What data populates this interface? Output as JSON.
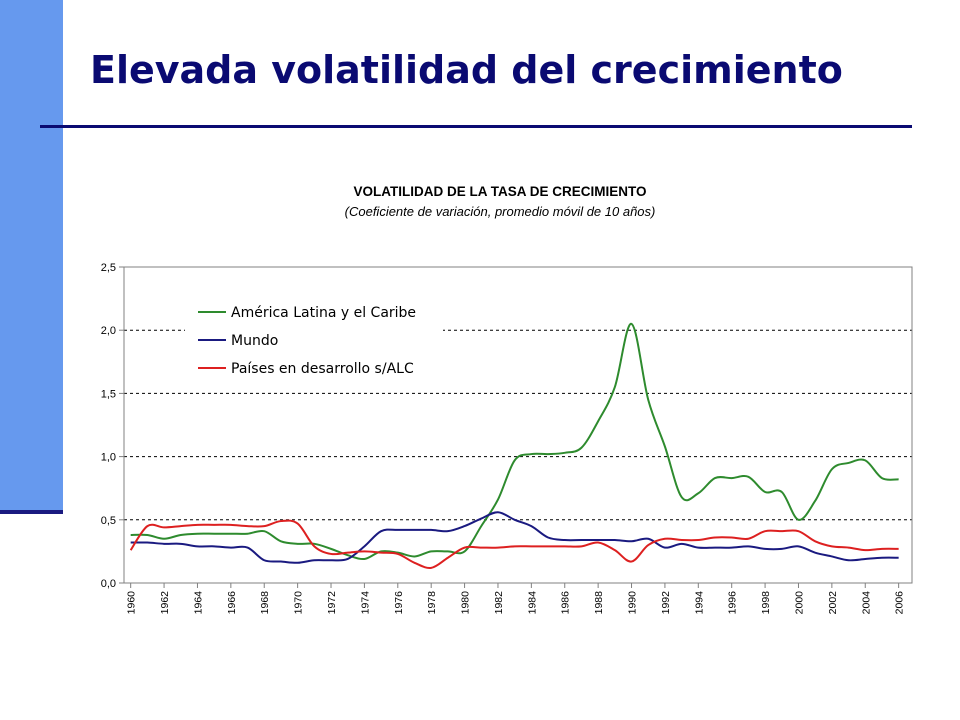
{
  "slide": {
    "title": "Elevada volatilidad del crecimiento"
  },
  "chart_data": {
    "type": "line",
    "title": "VOLATILIDAD DE LA TASA DE CRECIMIENTO",
    "subtitle": "(Coeficiente de variación, promedio móvil de 10 años)",
    "xlabel": "",
    "ylabel": "",
    "ylim": [
      0,
      2.5
    ],
    "yticks": [
      "0,0",
      "0,5",
      "1,0",
      "1,5",
      "2,0",
      "2,5"
    ],
    "xticks": [
      "1960",
      "1962",
      "1964",
      "1966",
      "1968",
      "1970",
      "1972",
      "1974",
      "1976",
      "1978",
      "1980",
      "1982",
      "1984",
      "1986",
      "1988",
      "1990",
      "1992",
      "1994",
      "1996",
      "1998",
      "2000",
      "2002",
      "2004",
      "2006"
    ],
    "grid": "horizontal dashed",
    "legend_position": "top-left",
    "x": [
      1960,
      1961,
      1962,
      1963,
      1964,
      1965,
      1966,
      1967,
      1968,
      1969,
      1970,
      1971,
      1972,
      1973,
      1974,
      1975,
      1976,
      1977,
      1978,
      1979,
      1980,
      1981,
      1982,
      1983,
      1984,
      1985,
      1986,
      1987,
      1988,
      1989,
      1990,
      1991,
      1992,
      1993,
      1994,
      1995,
      1996,
      1997,
      1998,
      1999,
      2000,
      2001,
      2002,
      2003,
      2004,
      2005,
      2006
    ],
    "series": [
      {
        "name": "América Latina y el Caribe",
        "color": "#2e8b2e",
        "values": [
          0.38,
          0.38,
          0.35,
          0.38,
          0.39,
          0.39,
          0.39,
          0.39,
          0.41,
          0.33,
          0.31,
          0.31,
          0.27,
          0.22,
          0.19,
          0.25,
          0.24,
          0.21,
          0.25,
          0.25,
          0.25,
          0.45,
          0.66,
          0.97,
          1.02,
          1.02,
          1.03,
          1.07,
          1.28,
          1.55,
          2.05,
          1.45,
          1.08,
          0.68,
          0.71,
          0.83,
          0.83,
          0.84,
          0.72,
          0.72,
          0.5,
          0.65,
          0.9,
          0.95,
          0.97,
          0.83,
          0.82
        ]
      },
      {
        "name": "Mundo",
        "color": "#1a1a80",
        "values": [
          0.32,
          0.32,
          0.31,
          0.31,
          0.29,
          0.29,
          0.28,
          0.28,
          0.18,
          0.17,
          0.16,
          0.18,
          0.18,
          0.19,
          0.29,
          0.41,
          0.42,
          0.42,
          0.42,
          0.41,
          0.45,
          0.51,
          0.56,
          0.5,
          0.45,
          0.36,
          0.34,
          0.34,
          0.34,
          0.34,
          0.33,
          0.35,
          0.28,
          0.31,
          0.28,
          0.28,
          0.28,
          0.29,
          0.27,
          0.27,
          0.29,
          0.24,
          0.21,
          0.18,
          0.19,
          0.2,
          0.2
        ]
      },
      {
        "name": "Países en desarrollo s/ALC",
        "color": "#dd2020",
        "values": [
          0.26,
          0.45,
          0.44,
          0.45,
          0.46,
          0.46,
          0.46,
          0.45,
          0.45,
          0.49,
          0.47,
          0.29,
          0.23,
          0.24,
          0.25,
          0.24,
          0.23,
          0.16,
          0.12,
          0.2,
          0.28,
          0.28,
          0.28,
          0.29,
          0.29,
          0.29,
          0.29,
          0.29,
          0.32,
          0.26,
          0.17,
          0.3,
          0.35,
          0.34,
          0.34,
          0.36,
          0.36,
          0.35,
          0.41,
          0.41,
          0.41,
          0.33,
          0.29,
          0.28,
          0.26,
          0.27,
          0.27
        ]
      }
    ]
  }
}
